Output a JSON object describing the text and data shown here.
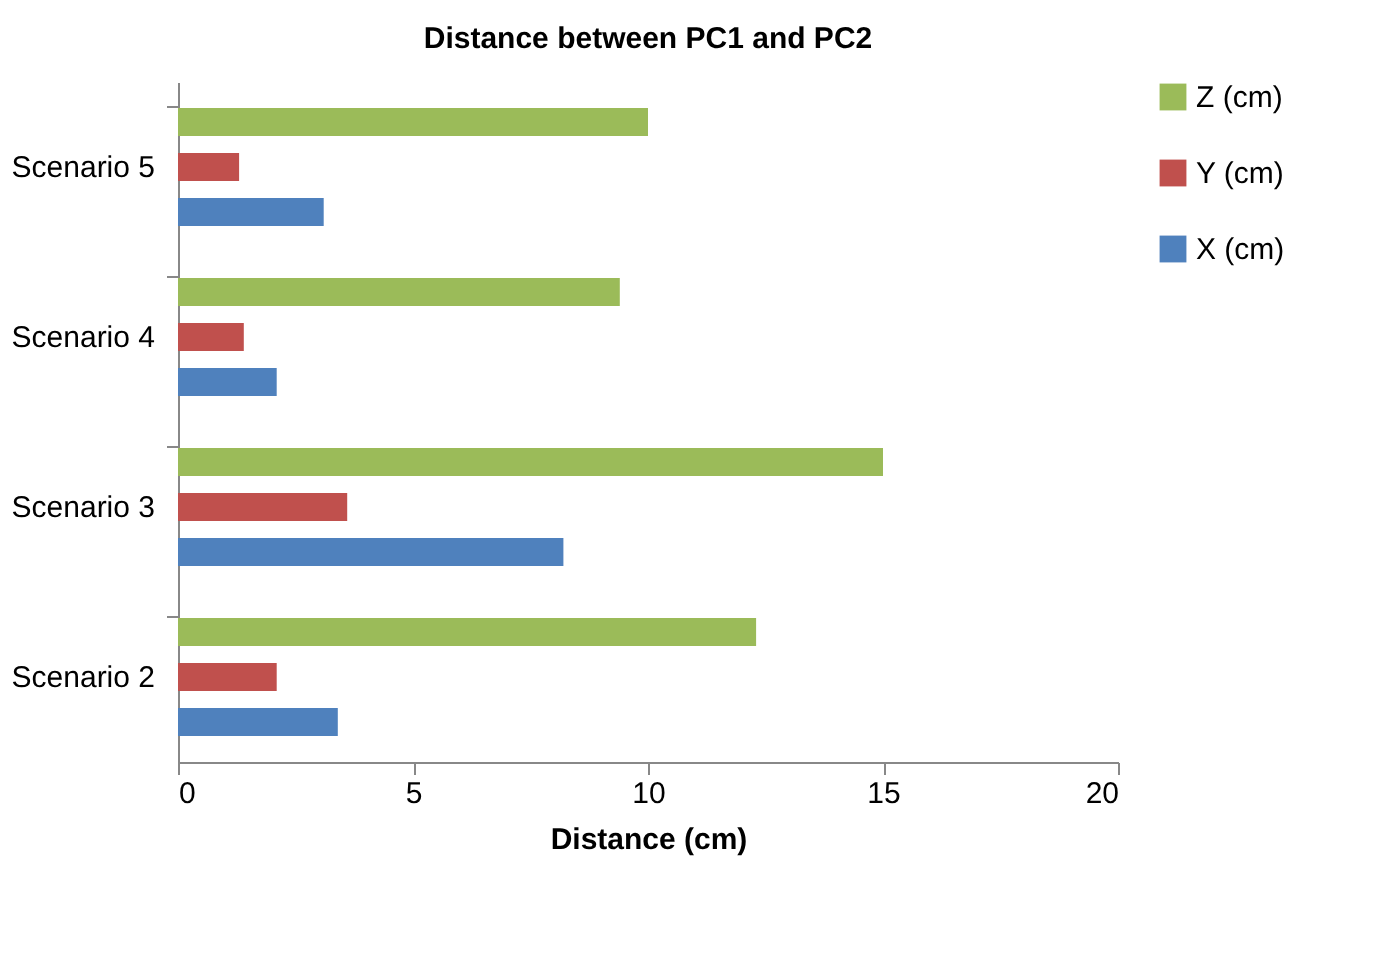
{
  "chart_data": {
    "type": "bar",
    "orientation": "horizontal",
    "title": "Distance between PC1 and PC2",
    "xlabel": "Distance (cm)",
    "categories": [
      "Scenario 5",
      "Scenario 4",
      "Scenario 3",
      "Scenario 2"
    ],
    "series": [
      {
        "name": "Z (cm)",
        "color": "#9bbb59",
        "values": [
          10.0,
          9.4,
          15.0,
          12.3
        ]
      },
      {
        "name": "Y (cm)",
        "color": "#c0504d",
        "values": [
          1.3,
          1.4,
          3.6,
          2.1
        ]
      },
      {
        "name": "X (cm)",
        "color": "#4f81bd",
        "values": [
          3.1,
          2.1,
          8.2,
          3.4
        ]
      }
    ],
    "xlim": [
      0,
      20
    ],
    "xticks": [
      0,
      5,
      10,
      15,
      20
    ],
    "grid": false,
    "legend": "right"
  }
}
